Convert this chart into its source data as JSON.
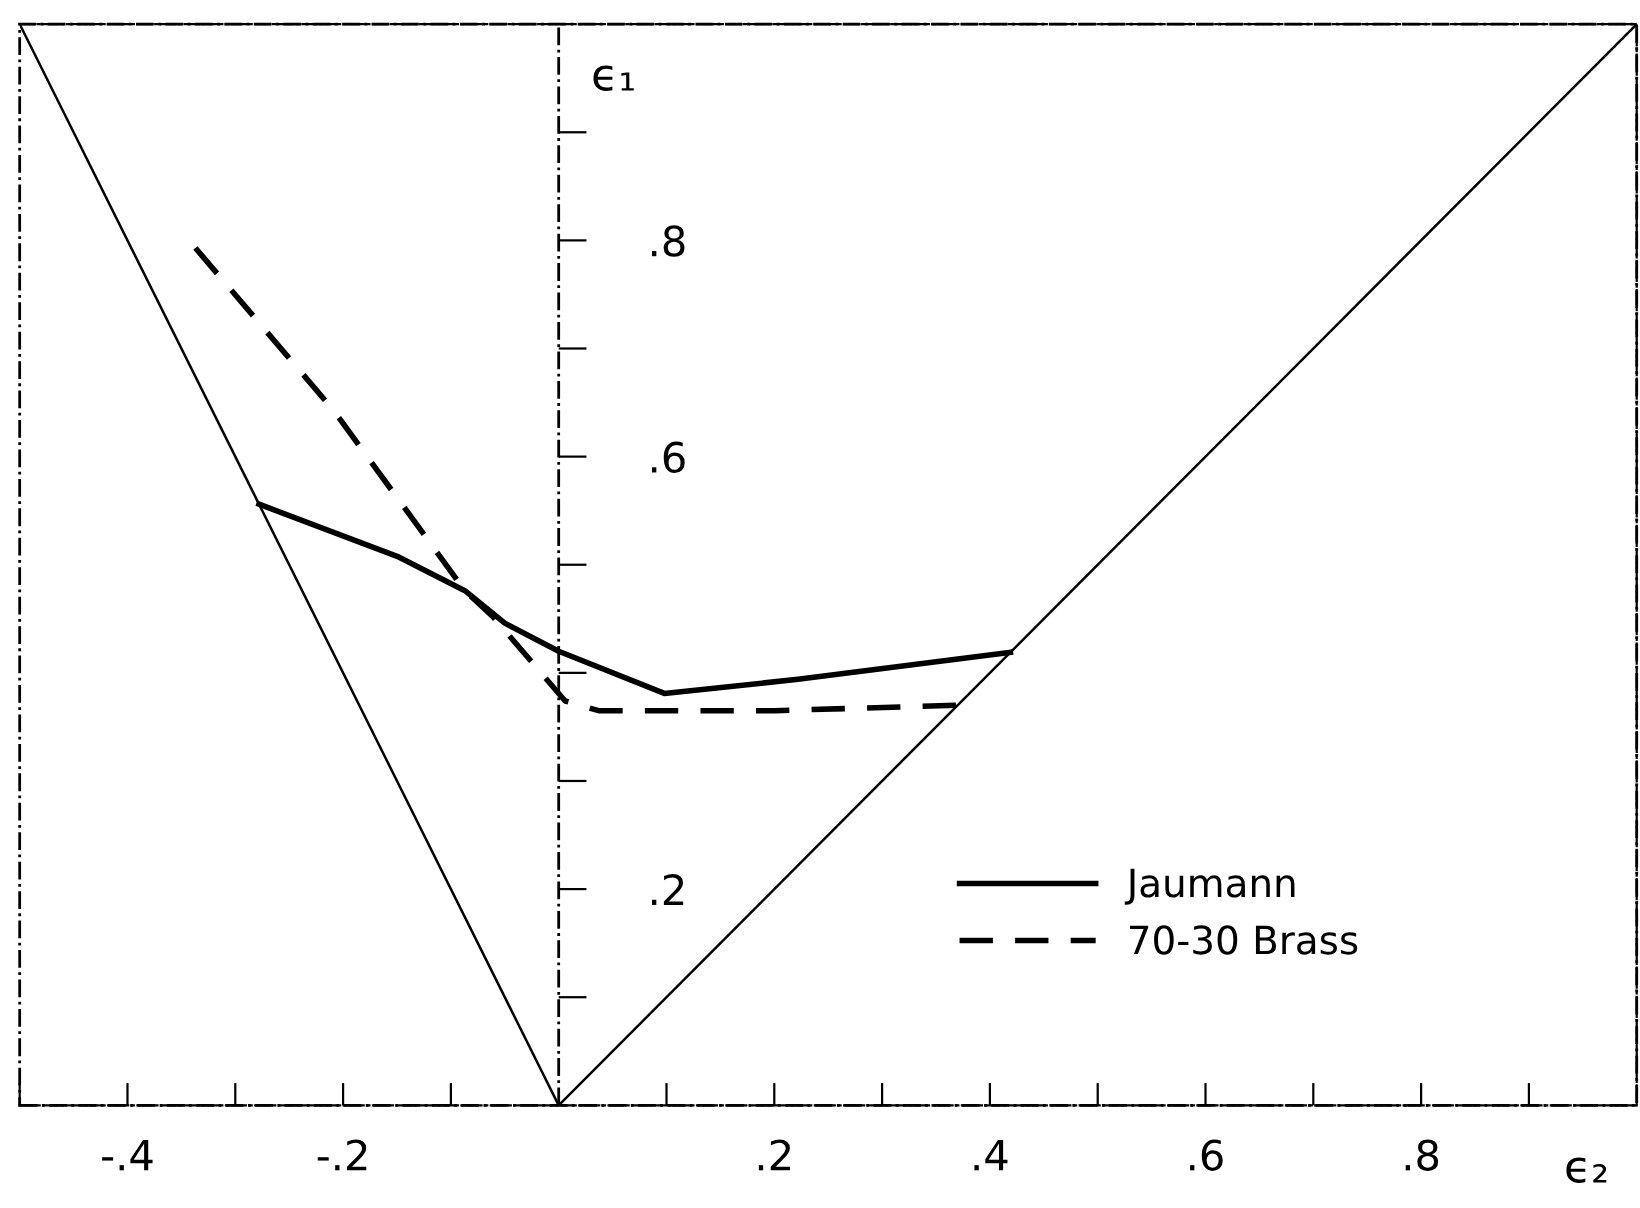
{
  "chart_data": {
    "type": "line",
    "xlabel": "ϵ₂",
    "ylabel": "ϵ₁",
    "series": [
      {
        "name": "Jaumann",
        "color": "#000000",
        "line_style": "solid",
        "x": [
          -0.278,
          -0.148,
          -0.087,
          -0.05,
          0.0,
          0.098,
          0.222,
          0.419
        ],
        "values": [
          0.556,
          0.507,
          0.476,
          0.446,
          0.42,
          0.381,
          0.394,
          0.419
        ]
      },
      {
        "name": "70-30 Brass",
        "color": "#000000",
        "line_style": "dashed",
        "x": [
          -0.337,
          -0.209,
          -0.087,
          -0.061,
          0.006,
          0.037,
          0.2,
          0.37
        ],
        "values": [
          0.793,
          0.643,
          0.476,
          0.452,
          0.374,
          0.365,
          0.365,
          0.37
        ]
      },
      {
        "color": "#000000",
        "line_style": "solid",
        "x": [
          -0.5,
          0.0,
          1.0
        ],
        "values": [
          1.0,
          0.0,
          1.0
        ]
      }
    ],
    "xlim": [
      -0.5,
      1.0
    ],
    "ylim": [
      0,
      1.0
    ],
    "xticks": [
      {
        "value": -0.5,
        "label": null
      },
      {
        "value": -0.4,
        "label": "-.4"
      },
      {
        "value": -0.3,
        "label": null
      },
      {
        "value": -0.2,
        "label": "-.2"
      },
      {
        "value": -0.1,
        "label": null
      },
      {
        "value": 0.1,
        "label": null
      },
      {
        "value": 0.2,
        "label": ".2"
      },
      {
        "value": 0.3,
        "label": null
      },
      {
        "value": 0.4,
        "label": ".4"
      },
      {
        "value": 0.5,
        "label": null
      },
      {
        "value": 0.6,
        "label": ".6"
      },
      {
        "value": 0.7,
        "label": null
      },
      {
        "value": 0.8,
        "label": ".8"
      },
      {
        "value": 0.9,
        "label": null
      }
    ],
    "yticks": [
      {
        "value": 0.1,
        "label": null
      },
      {
        "value": 0.2,
        "label": ".2"
      },
      {
        "value": 0.3,
        "label": null
      },
      {
        "value": 0.4,
        "label": null
      },
      {
        "value": 0.5,
        "label": null
      },
      {
        "value": 0.6,
        "label": ".6"
      },
      {
        "value": 0.7,
        "label": null
      },
      {
        "value": 0.8,
        "label": ".8"
      },
      {
        "value": 0.9,
        "label": null
      }
    ],
    "ref_lines": [
      {
        "axis": "x",
        "value": 0,
        "color": "#000000",
        "line_style": "dashed"
      }
    ],
    "grid": false,
    "legend": "bottom right",
    "marker": "none"
  }
}
